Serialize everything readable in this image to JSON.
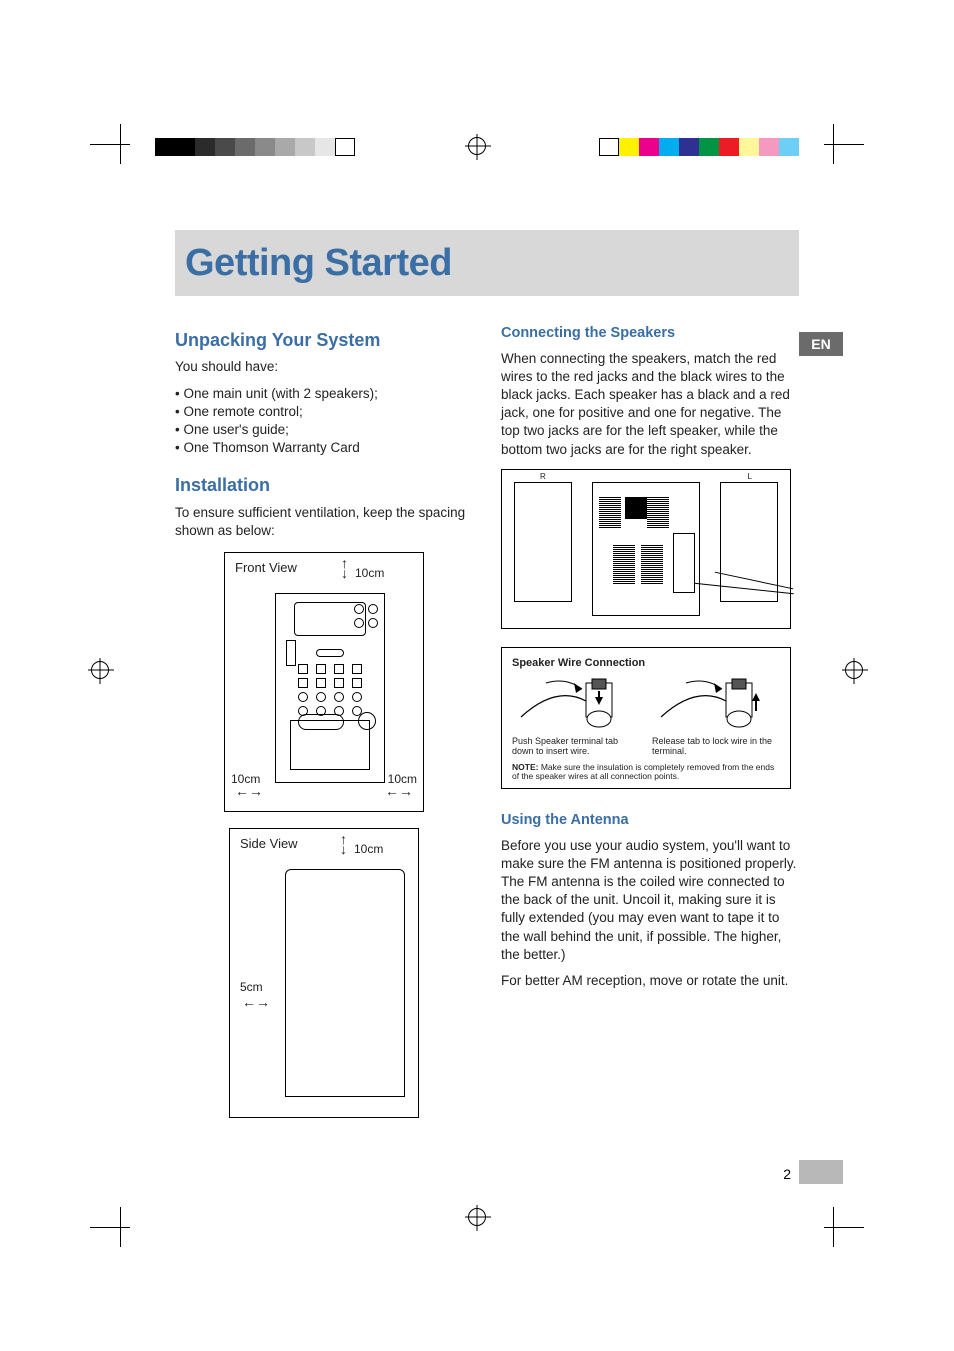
{
  "page": {
    "title": "Getting Started",
    "number": "2",
    "lang_tab": "EN"
  },
  "printer_marks": {
    "gray_swatches": [
      "#000000",
      "#000000",
      "#2b2b2b",
      "#4a4a4a",
      "#6b6b6b",
      "#8a8a8a",
      "#a9a9a9",
      "#c8c8c8",
      "#e6e6e6",
      "#ffffff"
    ],
    "color_swatches": [
      "#ffffff",
      "#fff200",
      "#ec008c",
      "#00aeef",
      "#2e3192",
      "#009444",
      "#ed1c24",
      "#fff799",
      "#f49ac1",
      "#6dcff6"
    ],
    "title_bg": "#d8d8d8",
    "heading_color": "#3a6ea5",
    "lang_tab_bg": "#6b6b6b",
    "page_tab_bg": "#b8b8b8"
  },
  "unpacking": {
    "heading": "Unpacking Your System",
    "intro": "You should have:",
    "items": [
      "One main unit (with 2 speakers);",
      "One remote control;",
      "One user's guide;",
      "One Thomson Warranty Card"
    ]
  },
  "installation": {
    "heading": "Installation",
    "intro": "To ensure sufficient ventilation, keep the spacing shown as below:",
    "front_view_label": "Front View",
    "side_view_label": "Side View",
    "clearances": {
      "top_front": "10cm",
      "left_front": "10cm",
      "right_front": "10cm",
      "top_side": "10cm",
      "back_side": "5cm"
    }
  },
  "speakers": {
    "heading": "Connecting the Speakers",
    "body": "When connecting the speakers, match the red wires to the red jacks and the black wires to the black jacks. Each speaker has a black and a red jack, one for positive and one for negative. The top two jacks are for the left speaker, while the bottom two jacks are for the right speaker.",
    "rear_labels": {
      "left": "R",
      "right": "L"
    },
    "wire_box": {
      "title": "Speaker  Wire Connection",
      "caption_left": "Push Speaker terminal tab down to insert wire.",
      "caption_right": "Release tab to lock wire in the terminal.",
      "note_label": "NOTE:",
      "note": "Make sure the insulation is completely removed from the ends of the speaker wires at all connection points."
    }
  },
  "antenna": {
    "heading": "Using the Antenna",
    "p1": "Before you use your audio system, you'll want to make sure the FM antenna is positioned properly. The FM antenna is the coiled wire connected to the back of the unit. Uncoil it, making sure it is fully extended (you may even want to tape it to the wall behind the unit, if possible. The higher, the better.)",
    "p2": "For better AM reception, move or rotate the unit."
  }
}
